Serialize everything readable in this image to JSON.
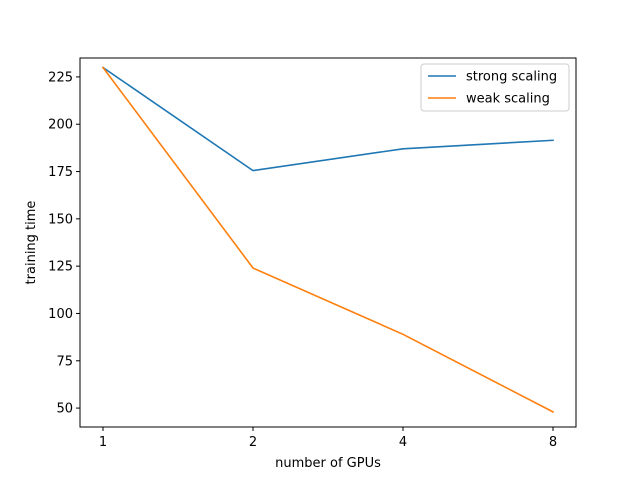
{
  "chart_data": {
    "type": "line",
    "title": "",
    "xlabel": "number of GPUs",
    "ylabel": "training time",
    "x": [
      1,
      2,
      4,
      8
    ],
    "x_scale": "categorical",
    "xticks": [
      "1",
      "2",
      "4",
      "8"
    ],
    "ylim": [
      40,
      235
    ],
    "yticks": [
      50,
      75,
      100,
      125,
      150,
      175,
      200,
      225
    ],
    "grid": false,
    "legend_position": "top-right",
    "series": [
      {
        "name": "strong scaling",
        "color": "#1f77b4",
        "values": [
          230,
          175.5,
          187,
          191.5
        ]
      },
      {
        "name": "weak scaling",
        "color": "#ff7f0e",
        "values": [
          230,
          124,
          89,
          48
        ]
      }
    ]
  }
}
